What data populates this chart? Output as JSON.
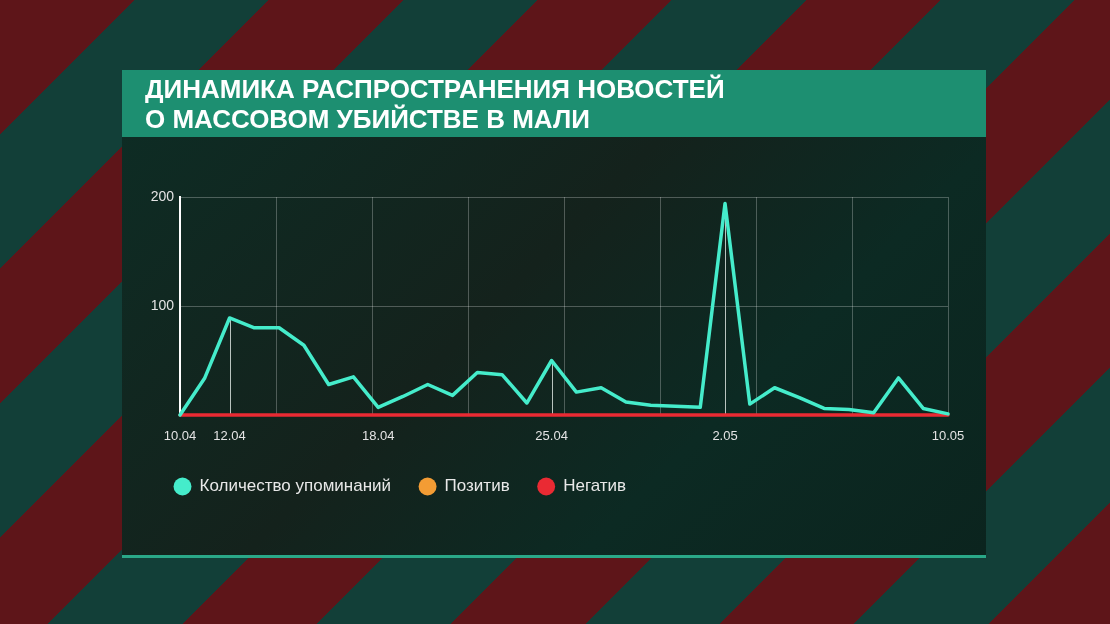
{
  "chart_data": {
    "type": "line",
    "title": "ДИНАМИКА РАСПРОСТРАНЕНИЯ НОВОСТЕЙ О МАССОВОМ УБИЙСТВЕ В МАЛИ",
    "categories": [
      "10.04",
      null,
      "12.04",
      null,
      null,
      null,
      null,
      null,
      "18.04",
      null,
      null,
      null,
      null,
      null,
      null,
      "25.04",
      null,
      null,
      null,
      null,
      null,
      null,
      "2.05",
      null,
      null,
      null,
      null,
      null,
      null,
      null,
      null,
      "10.05"
    ],
    "series": [
      {
        "name": "Количество упоминаний",
        "color": "#45eccb",
        "values": [
          0,
          34,
          89,
          80,
          80,
          64,
          28,
          35,
          7,
          17,
          28,
          18,
          39,
          37,
          11,
          50,
          21,
          25,
          12,
          9,
          8,
          7,
          194,
          10,
          25,
          16,
          6,
          5,
          2,
          34,
          6,
          1
        ]
      },
      {
        "name": "Позитив",
        "color": "#f39c34",
        "values": [
          null,
          null,
          null,
          null,
          null,
          null,
          null,
          null,
          null,
          null,
          null,
          null,
          null,
          null,
          null,
          null,
          null,
          null,
          null,
          null,
          null,
          null,
          null,
          null,
          null,
          null,
          null,
          null,
          null,
          null,
          null,
          null
        ]
      },
      {
        "name": "Негатив",
        "color": "#ea2a33",
        "values": [
          0,
          0,
          0,
          0,
          0,
          0,
          0,
          0,
          0,
          0,
          0,
          0,
          0,
          0,
          0,
          0,
          0,
          0,
          0,
          0,
          0,
          0,
          0,
          0,
          0,
          0,
          0,
          0,
          0,
          0,
          0,
          0
        ]
      }
    ],
    "ref_lines": [
      {
        "axis": "x",
        "value": "12.04",
        "color": "#b9c4bf"
      },
      {
        "axis": "x",
        "value": "25.04",
        "color": "#b9c4bf"
      },
      {
        "axis": "x",
        "value": "2.05",
        "color": "#b9c4bf"
      }
    ],
    "ylim": [
      0,
      200
    ],
    "yticks": [
      100,
      200
    ],
    "grid": true,
    "legend": "bottom left",
    "marker": "none",
    "line_style": "solid"
  }
}
